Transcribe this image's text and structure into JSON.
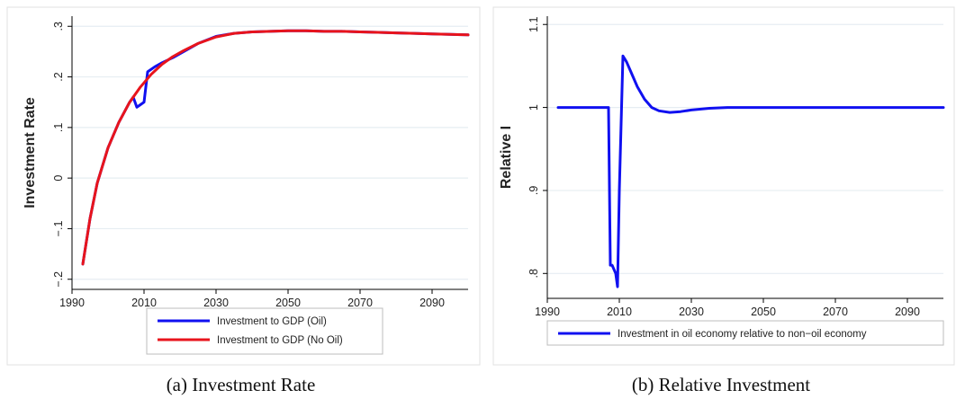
{
  "chart_data": [
    {
      "type": "line",
      "caption": "(a) Investment Rate",
      "ylabel": "Investment Rate",
      "xlabel": "",
      "xlim": [
        1990,
        2100
      ],
      "ylim": [
        -0.22,
        0.32
      ],
      "xticks": [
        1990,
        2010,
        2030,
        2050,
        2070,
        2090
      ],
      "xtick_labels": [
        "1990",
        "2010",
        "2030",
        "2050",
        "2070",
        "2090"
      ],
      "yticks": [
        -0.2,
        -0.1,
        0,
        0.1,
        0.2,
        0.3
      ],
      "ytick_labels": [
        "−.2",
        "−.1",
        "0",
        ".1",
        ".2",
        ".3"
      ],
      "grid": true,
      "legend_position": "bottom",
      "colors": {
        "oil": "#1010f0",
        "no_oil": "#e8141c",
        "grid": "#e6edf2",
        "frame": "#e0e0e0"
      },
      "series": [
        {
          "name": "Investment to GDP (Oil)",
          "color": "#1010f0",
          "x": [
            1993,
            1995,
            1997,
            2000,
            2003,
            2006,
            2007,
            2008,
            2009,
            2010,
            2011,
            2013,
            2015,
            2018,
            2021,
            2025,
            2030,
            2035,
            2040,
            2045,
            2050,
            2055,
            2060,
            2065,
            2070,
            2075,
            2080,
            2085,
            2090,
            2095,
            2100
          ],
          "y": [
            -0.17,
            -0.08,
            -0.01,
            0.06,
            0.11,
            0.15,
            0.16,
            0.14,
            0.145,
            0.15,
            0.21,
            0.22,
            0.228,
            0.238,
            0.25,
            0.266,
            0.28,
            0.286,
            0.289,
            0.29,
            0.291,
            0.291,
            0.29,
            0.29,
            0.289,
            0.288,
            0.287,
            0.286,
            0.285,
            0.284,
            0.283
          ]
        },
        {
          "name": "Investment to GDP (No Oil)",
          "color": "#e8141c",
          "x": [
            1993,
            1995,
            1997,
            2000,
            2003,
            2006,
            2009,
            2012,
            2015,
            2018,
            2021,
            2025,
            2030,
            2035,
            2040,
            2045,
            2050,
            2055,
            2060,
            2065,
            2070,
            2075,
            2080,
            2085,
            2090,
            2095,
            2100
          ],
          "y": [
            -0.17,
            -0.08,
            -0.01,
            0.06,
            0.11,
            0.15,
            0.18,
            0.205,
            0.225,
            0.24,
            0.252,
            0.266,
            0.279,
            0.286,
            0.289,
            0.29,
            0.291,
            0.291,
            0.29,
            0.29,
            0.289,
            0.288,
            0.287,
            0.286,
            0.285,
            0.284,
            0.283
          ]
        }
      ]
    },
    {
      "type": "line",
      "caption": "(b) Relative Investment",
      "ylabel": "Relative I",
      "xlabel": "",
      "xlim": [
        1990,
        2100
      ],
      "ylim": [
        0.77,
        1.11
      ],
      "xticks": [
        1990,
        2010,
        2030,
        2050,
        2070,
        2090
      ],
      "xtick_labels": [
        "1990",
        "2010",
        "2030",
        "2050",
        "2070",
        "2090"
      ],
      "yticks": [
        0.8,
        0.9,
        1.0,
        1.1
      ],
      "ytick_labels": [
        ".8",
        ".9",
        "1",
        "1.1"
      ],
      "grid": true,
      "legend_position": "bottom",
      "colors": {
        "line": "#1010f0",
        "grid": "#e6edf2",
        "frame": "#e0e0e0"
      },
      "series": [
        {
          "name": "Investment in oil economy relative to non−oil economy",
          "color": "#1010f0",
          "x": [
            1993,
            1995,
            2000,
            2005,
            2007,
            2007.5,
            2008,
            2009,
            2009.5,
            2010,
            2011,
            2012,
            2013,
            2015,
            2017,
            2019,
            2021,
            2024,
            2027,
            2030,
            2035,
            2040,
            2050,
            2060,
            2070,
            2080,
            2090,
            2100
          ],
          "y": [
            1.0,
            1.0,
            1.0,
            1.0,
            1.0,
            0.81,
            0.81,
            0.8,
            0.784,
            0.9,
            1.062,
            1.055,
            1.045,
            1.025,
            1.01,
            1.0,
            0.996,
            0.994,
            0.995,
            0.997,
            0.999,
            1.0,
            1.0,
            1.0,
            1.0,
            1.0,
            1.0,
            1.0
          ]
        }
      ]
    }
  ]
}
